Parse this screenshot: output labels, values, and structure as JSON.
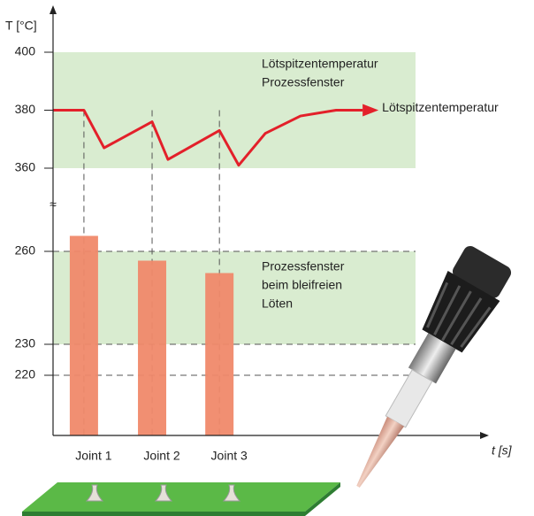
{
  "chart_data": {
    "type": "bar",
    "y_label": "T [°C]",
    "x_label": "t [s]",
    "break_label": "≈",
    "categories": [
      "Joint 1",
      "Joint 2",
      "Joint 3"
    ],
    "x": [
      7.2,
      23.1,
      38.8
    ],
    "values": [
      265,
      257,
      253
    ],
    "color": "#f0896a",
    "xlim": [
      0,
      100
    ],
    "ylim": [
      200,
      275
    ],
    "yticks": [
      220,
      230,
      260
    ],
    "grid": "dashed",
    "y2lim": [
      360,
      400
    ],
    "y2ticks": [
      360,
      380,
      400
    ],
    "bands": [
      {
        "from": 360,
        "to": 400,
        "axis": "y2",
        "label": [
          "Lötspitzentemperatur",
          "Prozessfenster"
        ]
      },
      {
        "from": 230,
        "to": 260,
        "label": [
          "Prozessfenster",
          "beim bleifreien",
          "Löten"
        ]
      }
    ],
    "band_color": "#d9ecd0",
    "series": [
      {
        "name": "Lötspitzentemperatur",
        "color": "#e3202a",
        "axis": "y2",
        "type": "line",
        "x": [
          0,
          7.2,
          11.9,
          23.1,
          26.8,
          38.8,
          43.3,
          49.5,
          57.7,
          66,
          72.2
        ],
        "values": [
          380,
          380,
          367,
          376,
          363,
          373,
          361,
          372,
          378,
          380,
          380
        ]
      }
    ]
  }
}
